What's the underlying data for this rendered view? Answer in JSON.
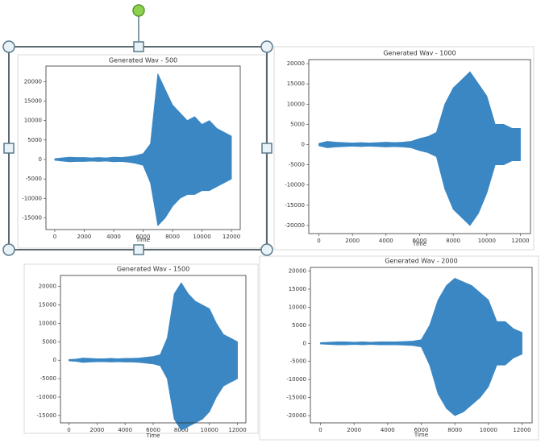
{
  "chart_data": [
    {
      "type": "area",
      "title": "Generated Wav - 500",
      "xlabel": "Time",
      "x": [
        0,
        500,
        1000,
        1500,
        2000,
        2500,
        3000,
        3500,
        4000,
        4500,
        5000,
        5500,
        6000,
        6500,
        7000,
        7500,
        8000,
        8500,
        9000,
        9500,
        10000,
        10500,
        11000,
        11500,
        12000
      ],
      "series": [
        {
          "color": "#3a87c4",
          "values": [
            200,
            400,
            600,
            500,
            500,
            400,
            500,
            400,
            600,
            500,
            700,
            1000,
            1500,
            4000,
            22000,
            18000,
            14000,
            12000,
            10000,
            11000,
            9000,
            10000,
            8000,
            7000,
            6000
          ]
        },
        {
          "color": "#3a87c4",
          "values": [
            -200,
            -400,
            -600,
            -500,
            -500,
            -400,
            -500,
            -400,
            -600,
            -500,
            -700,
            -1000,
            -1500,
            -6000,
            -17000,
            -15000,
            -12000,
            -10000,
            -9000,
            -9000,
            -8000,
            -8000,
            -7000,
            -6000,
            -5000
          ]
        }
      ],
      "xlim": [
        -600,
        12600
      ],
      "xticks": [
        0,
        2000,
        4000,
        6000,
        8000,
        10000,
        12000
      ],
      "ylim": [
        -18000,
        24000
      ],
      "yticks": [
        -15000,
        -10000,
        -5000,
        0,
        5000,
        10000,
        15000,
        20000
      ]
    },
    {
      "type": "area",
      "title": "Generated Wav - 1000",
      "xlabel": "Time",
      "x": [
        0,
        500,
        1000,
        1500,
        2000,
        2500,
        3000,
        3500,
        4000,
        4500,
        5000,
        5500,
        6000,
        6500,
        7000,
        7500,
        8000,
        8500,
        9000,
        9500,
        10000,
        10500,
        11000,
        11500,
        12000
      ],
      "series": [
        {
          "color": "#3a87c4",
          "values": [
            300,
            800,
            600,
            500,
            400,
            500,
            400,
            500,
            600,
            500,
            600,
            800,
            1500,
            2000,
            3000,
            10000,
            14000,
            16000,
            18000,
            15000,
            12000,
            5000,
            5000,
            4000,
            4000
          ]
        },
        {
          "color": "#3a87c4",
          "values": [
            -300,
            -800,
            -600,
            -500,
            -400,
            -500,
            -400,
            -500,
            -600,
            -500,
            -600,
            -800,
            -1500,
            -2000,
            -3000,
            -11000,
            -16000,
            -18000,
            -20000,
            -17000,
            -12000,
            -5000,
            -5000,
            -4000,
            -4000
          ]
        }
      ],
      "xlim": [
        -600,
        12600
      ],
      "xticks": [
        0,
        2000,
        4000,
        6000,
        8000,
        10000,
        12000
      ],
      "ylim": [
        -22000,
        21000
      ],
      "yticks": [
        -20000,
        -15000,
        -10000,
        -5000,
        0,
        5000,
        10000,
        15000,
        20000
      ]
    },
    {
      "type": "area",
      "title": "Generated Wav - 1500",
      "xlabel": "Time",
      "x": [
        0,
        500,
        1000,
        1500,
        2000,
        2500,
        3000,
        3500,
        4000,
        4500,
        5000,
        5500,
        6000,
        6500,
        7000,
        7500,
        8000,
        8500,
        9000,
        9500,
        10000,
        10500,
        11000,
        11500,
        12000
      ],
      "series": [
        {
          "color": "#3a87c4",
          "values": [
            200,
            300,
            600,
            500,
            400,
            400,
            500,
            400,
            500,
            500,
            600,
            800,
            1000,
            1500,
            6000,
            18000,
            21000,
            18000,
            16000,
            15000,
            14000,
            10000,
            7000,
            6000,
            5000
          ]
        },
        {
          "color": "#3a87c4",
          "values": [
            -200,
            -300,
            -600,
            -500,
            -400,
            -400,
            -500,
            -400,
            -500,
            -500,
            -600,
            -800,
            -1000,
            -1500,
            -5000,
            -16000,
            -19000,
            -18000,
            -17000,
            -16000,
            -14000,
            -10000,
            -7000,
            -6000,
            -5000
          ]
        }
      ],
      "xlim": [
        -600,
        12600
      ],
      "xticks": [
        0,
        2000,
        4000,
        6000,
        8000,
        10000,
        12000
      ],
      "ylim": [
        -17000,
        23000
      ],
      "yticks": [
        -15000,
        -10000,
        -5000,
        0,
        5000,
        10000,
        15000,
        20000
      ]
    },
    {
      "type": "area",
      "title": "Generated Wav - 2000",
      "xlabel": "Time",
      "x": [
        0,
        500,
        1000,
        1500,
        2000,
        2500,
        3000,
        3500,
        4000,
        4500,
        5000,
        5500,
        6000,
        6500,
        7000,
        7500,
        8000,
        8500,
        9000,
        9500,
        10000,
        10500,
        11000,
        11500,
        12000
      ],
      "series": [
        {
          "color": "#3a87c4",
          "values": [
            200,
            300,
            400,
            400,
            300,
            400,
            300,
            400,
            400,
            400,
            500,
            600,
            1000,
            5000,
            12000,
            16000,
            18000,
            17000,
            16000,
            14000,
            12000,
            6000,
            6000,
            4000,
            3000
          ]
        },
        {
          "color": "#3a87c4",
          "values": [
            -200,
            -300,
            -400,
            -400,
            -300,
            -400,
            -300,
            -400,
            -400,
            -400,
            -500,
            -600,
            -1000,
            -6000,
            -14000,
            -18000,
            -20000,
            -19000,
            -17000,
            -15000,
            -12000,
            -6000,
            -6000,
            -4000,
            -3000
          ]
        }
      ],
      "xlim": [
        -600,
        12600
      ],
      "xticks": [
        0,
        2000,
        4000,
        6000,
        8000,
        10000,
        12000
      ],
      "ylim": [
        -22000,
        21000
      ],
      "yticks": [
        -20000,
        -15000,
        -10000,
        -5000,
        0,
        5000,
        10000,
        15000,
        20000
      ]
    }
  ]
}
